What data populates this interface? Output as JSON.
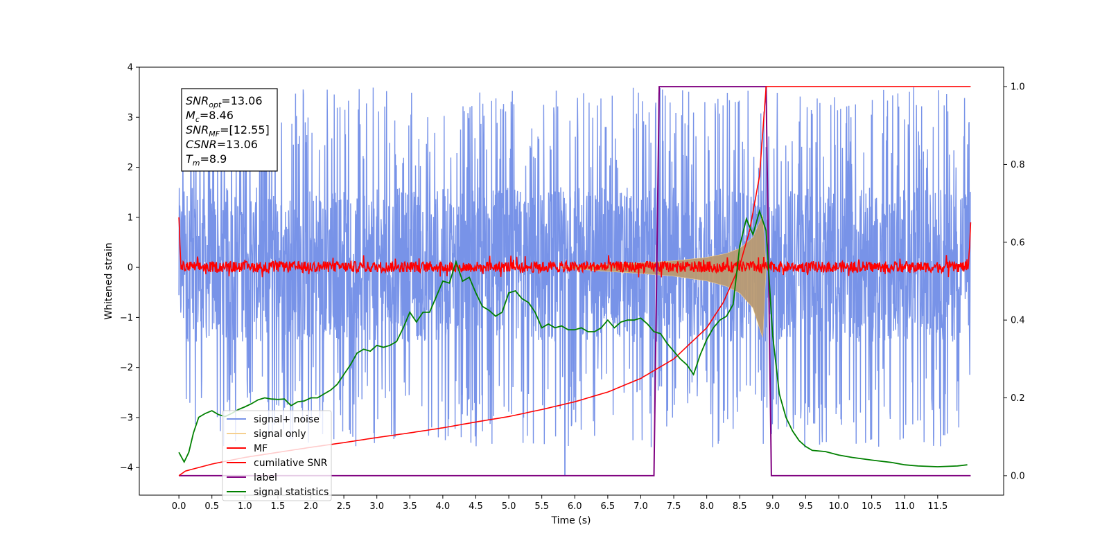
{
  "chart_data": {
    "type": "line",
    "title": "",
    "xlabel": "Time (s)",
    "ylabel": "Whitened strain",
    "y2label": "",
    "xlim": [
      -0.6,
      12.5
    ],
    "ylim": [
      -4.55,
      4.0
    ],
    "y2lim": [
      -0.05,
      1.05
    ],
    "x_ticks": [
      0.0,
      0.5,
      1.0,
      1.5,
      2.0,
      2.5,
      3.0,
      3.5,
      4.0,
      4.5,
      5.0,
      5.5,
      6.0,
      6.5,
      7.0,
      7.5,
      8.0,
      8.5,
      9.0,
      9.5,
      10.0,
      10.5,
      11.0,
      11.5
    ],
    "x_tick_labels": [
      "0.0",
      "0.5",
      "1.0",
      "1.5",
      "2.0",
      "2.5",
      "3.0",
      "3.5",
      "4.0",
      "4.5",
      "5.0",
      "5.5",
      "6.0",
      "6.5",
      "7.0",
      "7.5",
      "8.0",
      "8.5",
      "9.0",
      "9.5",
      "10.0",
      "10.5",
      "11.0",
      "11.5"
    ],
    "y_ticks": [
      4,
      3,
      2,
      1,
      0,
      -1,
      -2,
      -3,
      -4
    ],
    "y_tick_labels": [
      "4",
      "3",
      "2",
      "1",
      "0",
      "−1",
      "−2",
      "−3",
      "−4"
    ],
    "y2_ticks": [
      1.0,
      0.8,
      0.6,
      0.4,
      0.2,
      0.0
    ],
    "y2_tick_labels": [
      "1.0",
      "0.8",
      "0.6",
      "0.4",
      "0.2",
      "0.0"
    ],
    "grid": false,
    "legend_position": "lower-left",
    "legend": [
      {
        "name": "signal+ noise",
        "color": "#7893e8"
      },
      {
        "name": "signal only",
        "color": "#f5d090"
      },
      {
        "name": "MF",
        "color": "#ff0000"
      },
      {
        "name": "cumilative SNR",
        "color": "#ff0000"
      },
      {
        "name": "label",
        "color": "#800080"
      },
      {
        "name": "signal statistics",
        "color": "#008000"
      }
    ],
    "annotation": [
      {
        "base": "SNR",
        "sub": "opt",
        "rest": "=13.06"
      },
      {
        "base": "M",
        "sub": "c",
        "rest": "=8.46"
      },
      {
        "base": "SNR",
        "sub": "MF",
        "rest": "=[12.55]"
      },
      {
        "base": "CSNR",
        "sub": "",
        "rest": "=13.06"
      },
      {
        "base": "T",
        "sub": "m",
        "rest": "=8.9"
      }
    ],
    "series": [
      {
        "name": "signal+ noise",
        "axis": "left",
        "style": "noise",
        "x_range": [
          0.0,
          12.0
        ],
        "band": [
          -1.5,
          1.6
        ],
        "peak_range": [
          -3.6,
          3.6
        ],
        "dip": {
          "x": 5.85,
          "y": -4.15
        }
      },
      {
        "name": "signal only",
        "axis": "left",
        "style": "chirp",
        "envelope": {
          "x": [
            5.8,
            6.5,
            7.0,
            7.5,
            8.0,
            8.3,
            8.5,
            8.7,
            8.85,
            8.9
          ],
          "y": [
            0.01,
            0.06,
            0.09,
            0.13,
            0.2,
            0.28,
            0.38,
            0.6,
            1.05,
            0.0
          ]
        }
      },
      {
        "name": "MF",
        "axis": "left",
        "style": "noise",
        "x_range": [
          0.0,
          12.0
        ],
        "band": [
          -0.1,
          0.12
        ],
        "peak_range": [
          -0.2,
          0.25
        ],
        "start_value": 1.0,
        "end_value": 0.9
      },
      {
        "name": "cumilative SNR",
        "axis": "right",
        "x": [
          0.0,
          0.1,
          0.5,
          1.0,
          1.5,
          2.0,
          2.5,
          3.0,
          3.5,
          4.0,
          4.5,
          5.0,
          5.5,
          6.0,
          6.5,
          7.0,
          7.5,
          8.0,
          8.25,
          8.5,
          8.65,
          8.8,
          8.9,
          12.0
        ],
        "y": [
          0.0,
          0.012,
          0.03,
          0.047,
          0.06,
          0.073,
          0.085,
          0.098,
          0.11,
          0.123,
          0.138,
          0.152,
          0.17,
          0.19,
          0.215,
          0.25,
          0.3,
          0.38,
          0.445,
          0.54,
          0.63,
          0.77,
          1.0,
          1.0
        ]
      },
      {
        "name": "label",
        "axis": "right",
        "x": [
          0.0,
          7.2,
          7.28,
          8.9,
          8.98,
          12.0
        ],
        "y": [
          0.0,
          0.0,
          1.0,
          1.0,
          0.0,
          0.0
        ]
      },
      {
        "name": "signal statistics",
        "axis": "right",
        "x": [
          0.0,
          0.08,
          0.15,
          0.22,
          0.3,
          0.4,
          0.5,
          0.6,
          0.7,
          0.8,
          0.9,
          1.0,
          1.1,
          1.2,
          1.3,
          1.4,
          1.5,
          1.6,
          1.7,
          1.8,
          1.9,
          2.0,
          2.1,
          2.2,
          2.3,
          2.4,
          2.5,
          2.6,
          2.7,
          2.8,
          2.9,
          3.0,
          3.1,
          3.2,
          3.3,
          3.4,
          3.5,
          3.6,
          3.7,
          3.8,
          3.9,
          4.0,
          4.1,
          4.2,
          4.3,
          4.4,
          4.5,
          4.6,
          4.7,
          4.8,
          4.9,
          5.0,
          5.1,
          5.2,
          5.3,
          5.4,
          5.5,
          5.6,
          5.7,
          5.8,
          5.9,
          6.0,
          6.1,
          6.2,
          6.3,
          6.4,
          6.5,
          6.6,
          6.7,
          6.8,
          6.9,
          7.0,
          7.1,
          7.2,
          7.3,
          7.4,
          7.5,
          7.6,
          7.7,
          7.8,
          7.9,
          8.0,
          8.1,
          8.2,
          8.3,
          8.4,
          8.5,
          8.6,
          8.7,
          8.8,
          8.9,
          9.0,
          9.1,
          9.2,
          9.3,
          9.4,
          9.5,
          9.6,
          9.8,
          10.0,
          10.2,
          10.5,
          10.8,
          11.0,
          11.2,
          11.5,
          11.8,
          11.95
        ],
        "y": [
          0.06,
          0.035,
          0.06,
          0.11,
          0.15,
          0.16,
          0.167,
          0.157,
          0.152,
          0.16,
          0.17,
          0.177,
          0.185,
          0.195,
          0.2,
          0.197,
          0.196,
          0.197,
          0.18,
          0.19,
          0.192,
          0.2,
          0.2,
          0.21,
          0.22,
          0.235,
          0.26,
          0.285,
          0.315,
          0.325,
          0.32,
          0.335,
          0.33,
          0.335,
          0.345,
          0.38,
          0.42,
          0.395,
          0.42,
          0.42,
          0.46,
          0.5,
          0.495,
          0.55,
          0.5,
          0.51,
          0.47,
          0.435,
          0.425,
          0.41,
          0.42,
          0.47,
          0.475,
          0.455,
          0.445,
          0.42,
          0.38,
          0.39,
          0.38,
          0.385,
          0.375,
          0.375,
          0.38,
          0.37,
          0.37,
          0.38,
          0.4,
          0.38,
          0.395,
          0.4,
          0.4,
          0.405,
          0.39,
          0.37,
          0.365,
          0.34,
          0.32,
          0.3,
          0.285,
          0.26,
          0.31,
          0.35,
          0.38,
          0.4,
          0.41,
          0.44,
          0.59,
          0.66,
          0.62,
          0.68,
          0.63,
          0.36,
          0.21,
          0.15,
          0.115,
          0.09,
          0.075,
          0.065,
          0.062,
          0.053,
          0.047,
          0.04,
          0.034,
          0.028,
          0.025,
          0.023,
          0.025,
          0.028
        ]
      }
    ]
  }
}
